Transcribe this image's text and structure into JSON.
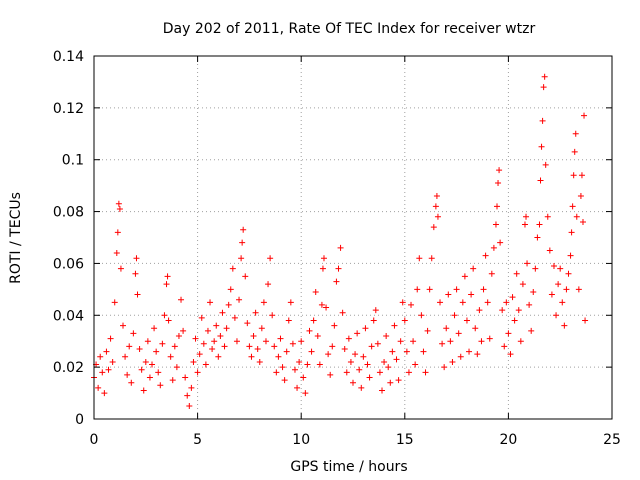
{
  "chart_data": {
    "type": "scatter",
    "title": "Day 202 of 2011, Rate Of TEC Index for receiver wtzr",
    "xlabel": "GPS time / hours",
    "ylabel": "ROTI / TECUs",
    "xlim": [
      0,
      25
    ],
    "ylim": [
      0,
      0.14
    ],
    "xticks": [
      0,
      5,
      10,
      15,
      20,
      25
    ],
    "xtick_labels": [
      "0",
      "5",
      "10",
      "15",
      "20",
      "25"
    ],
    "yticks": [
      0,
      0.02,
      0.04,
      0.06,
      0.08,
      0.1,
      0.12,
      0.14
    ],
    "ytick_labels": [
      "0",
      "0.02",
      "0.04",
      "0.06",
      "0.08",
      "0.1",
      "0.12",
      "0.14"
    ],
    "grid": true,
    "marker": "+",
    "marker_color": "#ff0000",
    "series": [
      {
        "points": [
          [
            0.0,
            0.016
          ],
          [
            0.1,
            0.021
          ],
          [
            0.2,
            0.012
          ],
          [
            0.3,
            0.024
          ],
          [
            0.4,
            0.018
          ],
          [
            0.5,
            0.01
          ],
          [
            0.6,
            0.026
          ],
          [
            0.7,
            0.019
          ],
          [
            0.8,
            0.031
          ],
          [
            0.9,
            0.022
          ],
          [
            1.0,
            0.045
          ],
          [
            1.1,
            0.064
          ],
          [
            1.15,
            0.072
          ],
          [
            1.2,
            0.083
          ],
          [
            1.25,
            0.081
          ],
          [
            1.3,
            0.058
          ],
          [
            1.4,
            0.036
          ],
          [
            1.5,
            0.024
          ],
          [
            1.6,
            0.017
          ],
          [
            1.7,
            0.028
          ],
          [
            1.8,
            0.014
          ],
          [
            1.9,
            0.033
          ],
          [
            2.0,
            0.056
          ],
          [
            2.05,
            0.062
          ],
          [
            2.1,
            0.048
          ],
          [
            2.2,
            0.027
          ],
          [
            2.3,
            0.019
          ],
          [
            2.4,
            0.011
          ],
          [
            2.5,
            0.022
          ],
          [
            2.6,
            0.03
          ],
          [
            2.7,
            0.016
          ],
          [
            2.8,
            0.021
          ],
          [
            2.9,
            0.035
          ],
          [
            3.0,
            0.026
          ],
          [
            3.1,
            0.018
          ],
          [
            3.2,
            0.013
          ],
          [
            3.3,
            0.029
          ],
          [
            3.4,
            0.04
          ],
          [
            3.5,
            0.052
          ],
          [
            3.55,
            0.055
          ],
          [
            3.6,
            0.038
          ],
          [
            3.7,
            0.024
          ],
          [
            3.8,
            0.015
          ],
          [
            3.9,
            0.028
          ],
          [
            4.0,
            0.02
          ],
          [
            4.1,
            0.032
          ],
          [
            4.2,
            0.046
          ],
          [
            4.3,
            0.034
          ],
          [
            4.4,
            0.016
          ],
          [
            4.5,
            0.009
          ],
          [
            4.6,
            0.005
          ],
          [
            4.7,
            0.012
          ],
          [
            4.8,
            0.022
          ],
          [
            4.9,
            0.031
          ],
          [
            5.0,
            0.018
          ],
          [
            5.1,
            0.025
          ],
          [
            5.2,
            0.039
          ],
          [
            5.3,
            0.029
          ],
          [
            5.4,
            0.021
          ],
          [
            5.5,
            0.034
          ],
          [
            5.6,
            0.045
          ],
          [
            5.7,
            0.027
          ],
          [
            5.8,
            0.03
          ],
          [
            5.9,
            0.036
          ],
          [
            6.0,
            0.024
          ],
          [
            6.1,
            0.032
          ],
          [
            6.2,
            0.041
          ],
          [
            6.3,
            0.028
          ],
          [
            6.4,
            0.035
          ],
          [
            6.5,
            0.044
          ],
          [
            6.6,
            0.05
          ],
          [
            6.7,
            0.058
          ],
          [
            6.8,
            0.039
          ],
          [
            6.9,
            0.03
          ],
          [
            7.0,
            0.046
          ],
          [
            7.1,
            0.062
          ],
          [
            7.15,
            0.068
          ],
          [
            7.2,
            0.073
          ],
          [
            7.3,
            0.055
          ],
          [
            7.4,
            0.037
          ],
          [
            7.5,
            0.028
          ],
          [
            7.6,
            0.024
          ],
          [
            7.7,
            0.032
          ],
          [
            7.8,
            0.041
          ],
          [
            7.9,
            0.027
          ],
          [
            8.0,
            0.022
          ],
          [
            8.1,
            0.035
          ],
          [
            8.2,
            0.045
          ],
          [
            8.3,
            0.03
          ],
          [
            8.4,
            0.052
          ],
          [
            8.5,
            0.062
          ],
          [
            8.6,
            0.04
          ],
          [
            8.7,
            0.028
          ],
          [
            8.8,
            0.018
          ],
          [
            8.9,
            0.024
          ],
          [
            9.0,
            0.031
          ],
          [
            9.1,
            0.02
          ],
          [
            9.2,
            0.015
          ],
          [
            9.3,
            0.026
          ],
          [
            9.4,
            0.038
          ],
          [
            9.5,
            0.045
          ],
          [
            9.6,
            0.029
          ],
          [
            9.7,
            0.019
          ],
          [
            9.8,
            0.012
          ],
          [
            9.9,
            0.022
          ],
          [
            10.0,
            0.03
          ],
          [
            10.1,
            0.016
          ],
          [
            10.2,
            0.01
          ],
          [
            10.3,
            0.021
          ],
          [
            10.4,
            0.034
          ],
          [
            10.5,
            0.026
          ],
          [
            10.6,
            0.038
          ],
          [
            10.7,
            0.049
          ],
          [
            10.8,
            0.032
          ],
          [
            10.9,
            0.021
          ],
          [
            11.0,
            0.044
          ],
          [
            11.05,
            0.058
          ],
          [
            11.1,
            0.062
          ],
          [
            11.2,
            0.043
          ],
          [
            11.3,
            0.025
          ],
          [
            11.4,
            0.017
          ],
          [
            11.5,
            0.028
          ],
          [
            11.6,
            0.036
          ],
          [
            11.7,
            0.053
          ],
          [
            11.8,
            0.058
          ],
          [
            11.9,
            0.066
          ],
          [
            12.0,
            0.041
          ],
          [
            12.1,
            0.027
          ],
          [
            12.2,
            0.018
          ],
          [
            12.3,
            0.031
          ],
          [
            12.4,
            0.022
          ],
          [
            12.5,
            0.014
          ],
          [
            12.6,
            0.025
          ],
          [
            12.7,
            0.033
          ],
          [
            12.8,
            0.019
          ],
          [
            12.9,
            0.012
          ],
          [
            13.0,
            0.024
          ],
          [
            13.1,
            0.035
          ],
          [
            13.2,
            0.021
          ],
          [
            13.3,
            0.016
          ],
          [
            13.4,
            0.028
          ],
          [
            13.5,
            0.038
          ],
          [
            13.6,
            0.042
          ],
          [
            13.7,
            0.029
          ],
          [
            13.8,
            0.018
          ],
          [
            13.9,
            0.011
          ],
          [
            14.0,
            0.022
          ],
          [
            14.1,
            0.032
          ],
          [
            14.2,
            0.02
          ],
          [
            14.3,
            0.014
          ],
          [
            14.4,
            0.026
          ],
          [
            14.5,
            0.036
          ],
          [
            14.6,
            0.023
          ],
          [
            14.7,
            0.015
          ],
          [
            14.8,
            0.03
          ],
          [
            14.9,
            0.045
          ],
          [
            15.0,
            0.038
          ],
          [
            15.1,
            0.026
          ],
          [
            15.2,
            0.018
          ],
          [
            15.3,
            0.044
          ],
          [
            15.4,
            0.03
          ],
          [
            15.5,
            0.021
          ],
          [
            15.6,
            0.05
          ],
          [
            15.7,
            0.062
          ],
          [
            15.8,
            0.04
          ],
          [
            15.9,
            0.026
          ],
          [
            16.0,
            0.018
          ],
          [
            16.1,
            0.034
          ],
          [
            16.2,
            0.05
          ],
          [
            16.3,
            0.062
          ],
          [
            16.4,
            0.074
          ],
          [
            16.5,
            0.082
          ],
          [
            16.55,
            0.086
          ],
          [
            16.6,
            0.078
          ],
          [
            16.7,
            0.045
          ],
          [
            16.8,
            0.029
          ],
          [
            16.9,
            0.02
          ],
          [
            17.0,
            0.035
          ],
          [
            17.1,
            0.048
          ],
          [
            17.2,
            0.03
          ],
          [
            17.3,
            0.022
          ],
          [
            17.4,
            0.04
          ],
          [
            17.5,
            0.05
          ],
          [
            17.6,
            0.033
          ],
          [
            17.7,
            0.024
          ],
          [
            17.8,
            0.045
          ],
          [
            17.9,
            0.055
          ],
          [
            18.0,
            0.038
          ],
          [
            18.1,
            0.026
          ],
          [
            18.2,
            0.048
          ],
          [
            18.3,
            0.058
          ],
          [
            18.4,
            0.035
          ],
          [
            18.5,
            0.025
          ],
          [
            18.6,
            0.042
          ],
          [
            18.7,
            0.03
          ],
          [
            18.8,
            0.05
          ],
          [
            18.9,
            0.063
          ],
          [
            19.0,
            0.045
          ],
          [
            19.1,
            0.031
          ],
          [
            19.2,
            0.056
          ],
          [
            19.3,
            0.066
          ],
          [
            19.4,
            0.075
          ],
          [
            19.45,
            0.082
          ],
          [
            19.5,
            0.091
          ],
          [
            19.55,
            0.096
          ],
          [
            19.6,
            0.068
          ],
          [
            19.7,
            0.042
          ],
          [
            19.8,
            0.028
          ],
          [
            19.9,
            0.045
          ],
          [
            20.0,
            0.033
          ],
          [
            20.1,
            0.025
          ],
          [
            20.2,
            0.047
          ],
          [
            20.3,
            0.038
          ],
          [
            20.4,
            0.056
          ],
          [
            20.5,
            0.042
          ],
          [
            20.6,
            0.03
          ],
          [
            20.7,
            0.052
          ],
          [
            20.8,
            0.075
          ],
          [
            20.85,
            0.078
          ],
          [
            20.9,
            0.06
          ],
          [
            21.0,
            0.044
          ],
          [
            21.1,
            0.034
          ],
          [
            21.2,
            0.049
          ],
          [
            21.3,
            0.058
          ],
          [
            21.4,
            0.07
          ],
          [
            21.5,
            0.075
          ],
          [
            21.55,
            0.092
          ],
          [
            21.6,
            0.105
          ],
          [
            21.65,
            0.115
          ],
          [
            21.7,
            0.128
          ],
          [
            21.75,
            0.132
          ],
          [
            21.8,
            0.098
          ],
          [
            21.9,
            0.078
          ],
          [
            22.0,
            0.065
          ],
          [
            22.1,
            0.048
          ],
          [
            22.2,
            0.059
          ],
          [
            22.3,
            0.04
          ],
          [
            22.4,
            0.052
          ],
          [
            22.5,
            0.058
          ],
          [
            22.6,
            0.045
          ],
          [
            22.7,
            0.036
          ],
          [
            22.8,
            0.05
          ],
          [
            22.9,
            0.056
          ],
          [
            23.0,
            0.063
          ],
          [
            23.05,
            0.072
          ],
          [
            23.1,
            0.082
          ],
          [
            23.15,
            0.094
          ],
          [
            23.2,
            0.103
          ],
          [
            23.25,
            0.11
          ],
          [
            23.3,
            0.078
          ],
          [
            23.4,
            0.05
          ],
          [
            23.5,
            0.086
          ],
          [
            23.55,
            0.094
          ],
          [
            23.6,
            0.076
          ],
          [
            23.65,
            0.117
          ],
          [
            23.7,
            0.038
          ]
        ]
      }
    ]
  }
}
